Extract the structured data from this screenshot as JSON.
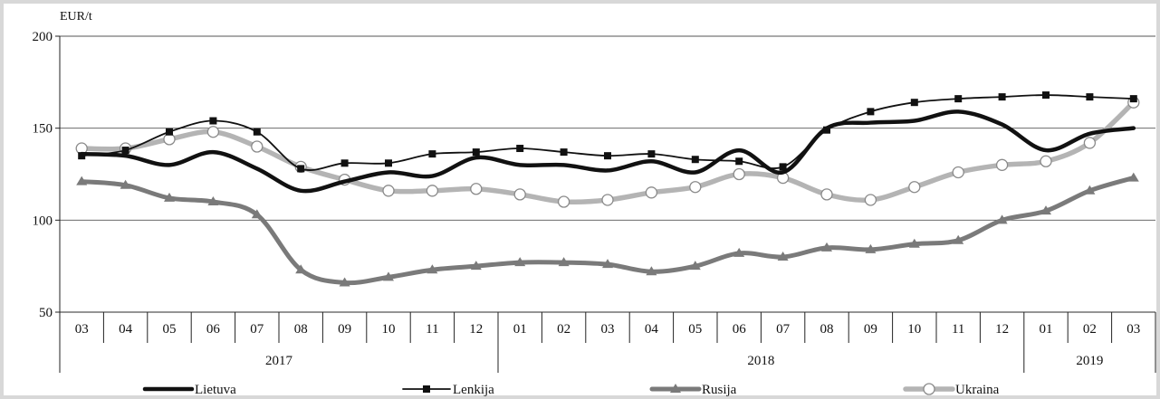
{
  "chart_data": {
    "type": "line",
    "unit_label": "EUR/t",
    "ylim": [
      50,
      200
    ],
    "yticks": [
      50,
      100,
      150,
      200
    ],
    "grid": true,
    "legend_position": "bottom",
    "categories": [
      "03",
      "04",
      "05",
      "06",
      "07",
      "08",
      "09",
      "10",
      "11",
      "12",
      "01",
      "02",
      "03",
      "04",
      "05",
      "06",
      "07",
      "08",
      "09",
      "10",
      "11",
      "12",
      "01",
      "02",
      "03"
    ],
    "year_groups": [
      {
        "label": "2017",
        "start": 0,
        "end": 9
      },
      {
        "label": "2018",
        "start": 10,
        "end": 21
      },
      {
        "label": "2019",
        "start": 22,
        "end": 24
      }
    ],
    "series": [
      {
        "name": "Lietuva",
        "color": "#111111",
        "marker": "none",
        "values": [
          136,
          135,
          130,
          137,
          128,
          116,
          121,
          126,
          124,
          134,
          130,
          130,
          127,
          132,
          126,
          138,
          126,
          150,
          153,
          154,
          159,
          152,
          138,
          147,
          150
        ]
      },
      {
        "name": "Lenkija",
        "color": "#111111",
        "marker": "square",
        "values": [
          135,
          138,
          148,
          154,
          148,
          128,
          131,
          131,
          136,
          137,
          139,
          137,
          135,
          136,
          133,
          132,
          129,
          149,
          159,
          164,
          166,
          167,
          168,
          167,
          166
        ]
      },
      {
        "name": "Rusija",
        "color": "#7a7a7a",
        "marker": "triangle",
        "values": [
          121,
          119,
          112,
          110,
          103,
          73,
          66,
          69,
          73,
          75,
          77,
          77,
          76,
          72,
          75,
          82,
          80,
          85,
          84,
          87,
          89,
          100,
          105,
          116,
          123
        ]
      },
      {
        "name": "Ukraina",
        "color": "#b4b4b4",
        "marker": "circle",
        "values": [
          139,
          139,
          144,
          148,
          140,
          129,
          122,
          116,
          116,
          117,
          114,
          110,
          111,
          115,
          118,
          125,
          123,
          114,
          111,
          118,
          126,
          130,
          132,
          142,
          164
        ]
      }
    ]
  }
}
